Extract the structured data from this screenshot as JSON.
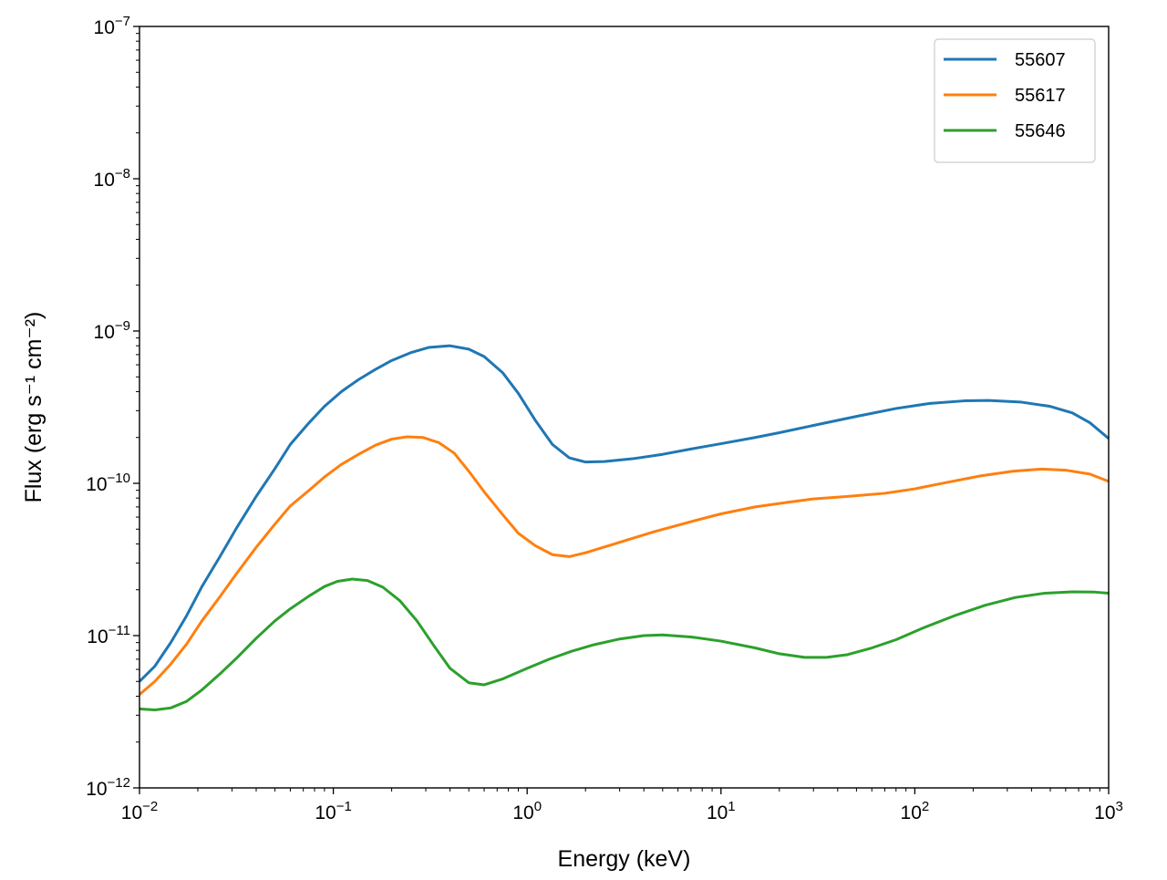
{
  "chart_data": {
    "type": "line",
    "title": "",
    "xlabel": "Energy (keV)",
    "ylabel": "Flux (erg s⁻¹ cm⁻²)",
    "xscale": "log",
    "yscale": "log",
    "xlim": [
      0.01,
      1000
    ],
    "ylim": [
      1e-12,
      1e-07
    ],
    "grid": false,
    "legend_position": "top-right",
    "x_ticks": [
      {
        "base": "10",
        "exp": "−2",
        "value": 0.01
      },
      {
        "base": "10",
        "exp": "−1",
        "value": 0.1
      },
      {
        "base": "10",
        "exp": "0",
        "value": 1
      },
      {
        "base": "10",
        "exp": "1",
        "value": 10
      },
      {
        "base": "10",
        "exp": "2",
        "value": 100
      },
      {
        "base": "10",
        "exp": "3",
        "value": 1000
      }
    ],
    "y_ticks": [
      {
        "base": "10",
        "exp": "−12",
        "value": 1e-12
      },
      {
        "base": "10",
        "exp": "−11",
        "value": 1e-11
      },
      {
        "base": "10",
        "exp": "−10",
        "value": 1e-10
      },
      {
        "base": "10",
        "exp": "−9",
        "value": 1e-09
      },
      {
        "base": "10",
        "exp": "−8",
        "value": 1e-08
      },
      {
        "base": "10",
        "exp": "−7",
        "value": 1e-07
      }
    ],
    "series": [
      {
        "name": "55607",
        "color": "#1f77b4",
        "points": [
          [
            0.01,
            5e-12
          ],
          [
            0.012,
            6.3e-12
          ],
          [
            0.0145,
            9e-12
          ],
          [
            0.0175,
            1.35e-11
          ],
          [
            0.021,
            2.1e-11
          ],
          [
            0.026,
            3.3e-11
          ],
          [
            0.032,
            5.2e-11
          ],
          [
            0.04,
            8.2e-11
          ],
          [
            0.05,
            1.25e-10
          ],
          [
            0.06,
            1.8e-10
          ],
          [
            0.075,
            2.5e-10
          ],
          [
            0.09,
            3.2e-10
          ],
          [
            0.11,
            4e-10
          ],
          [
            0.135,
            4.8e-10
          ],
          [
            0.165,
            5.6e-10
          ],
          [
            0.2,
            6.4e-10
          ],
          [
            0.25,
            7.2e-10
          ],
          [
            0.31,
            7.8e-10
          ],
          [
            0.4,
            8e-10
          ],
          [
            0.5,
            7.6e-10
          ],
          [
            0.6,
            6.8e-10
          ],
          [
            0.75,
            5.3e-10
          ],
          [
            0.9,
            3.9e-10
          ],
          [
            1.1,
            2.6e-10
          ],
          [
            1.35,
            1.8e-10
          ],
          [
            1.65,
            1.47e-10
          ],
          [
            2.0,
            1.38e-10
          ],
          [
            2.5,
            1.39e-10
          ],
          [
            3.5,
            1.45e-10
          ],
          [
            5.0,
            1.55e-10
          ],
          [
            7.0,
            1.68e-10
          ],
          [
            10,
            1.82e-10
          ],
          [
            15,
            2e-10
          ],
          [
            20,
            2.15e-10
          ],
          [
            30,
            2.4e-10
          ],
          [
            50,
            2.75e-10
          ],
          [
            80,
            3.1e-10
          ],
          [
            120,
            3.35e-10
          ],
          [
            180,
            3.48e-10
          ],
          [
            240,
            3.5e-10
          ],
          [
            350,
            3.42e-10
          ],
          [
            500,
            3.2e-10
          ],
          [
            650,
            2.9e-10
          ],
          [
            800,
            2.5e-10
          ],
          [
            1000,
            1.97e-10
          ]
        ]
      },
      {
        "name": "55617",
        "color": "#ff7f0e",
        "points": [
          [
            0.01,
            4.1e-12
          ],
          [
            0.012,
            5e-12
          ],
          [
            0.0145,
            6.5e-12
          ],
          [
            0.0175,
            8.8e-12
          ],
          [
            0.021,
            1.25e-11
          ],
          [
            0.026,
            1.8e-11
          ],
          [
            0.032,
            2.6e-11
          ],
          [
            0.04,
            3.8e-11
          ],
          [
            0.05,
            5.4e-11
          ],
          [
            0.06,
            7.1e-11
          ],
          [
            0.075,
            9e-11
          ],
          [
            0.09,
            1.1e-10
          ],
          [
            0.11,
            1.33e-10
          ],
          [
            0.135,
            1.55e-10
          ],
          [
            0.165,
            1.78e-10
          ],
          [
            0.2,
            1.95e-10
          ],
          [
            0.24,
            2.02e-10
          ],
          [
            0.29,
            2e-10
          ],
          [
            0.35,
            1.85e-10
          ],
          [
            0.42,
            1.58e-10
          ],
          [
            0.5,
            1.2e-10
          ],
          [
            0.6,
            8.8e-11
          ],
          [
            0.75,
            6.2e-11
          ],
          [
            0.9,
            4.7e-11
          ],
          [
            1.1,
            3.9e-11
          ],
          [
            1.35,
            3.4e-11
          ],
          [
            1.65,
            3.3e-11
          ],
          [
            2.0,
            3.5e-11
          ],
          [
            3.0,
            4.1e-11
          ],
          [
            4.5,
            4.8e-11
          ],
          [
            7.0,
            5.6e-11
          ],
          [
            10,
            6.3e-11
          ],
          [
            15,
            7e-11
          ],
          [
            22,
            7.5e-11
          ],
          [
            30,
            7.9e-11
          ],
          [
            45,
            8.2e-11
          ],
          [
            70,
            8.6e-11
          ],
          [
            100,
            9.2e-11
          ],
          [
            150,
            1.02e-10
          ],
          [
            220,
            1.12e-10
          ],
          [
            320,
            1.2e-10
          ],
          [
            450,
            1.24e-10
          ],
          [
            600,
            1.22e-10
          ],
          [
            800,
            1.15e-10
          ],
          [
            1000,
            1.03e-10
          ]
        ]
      },
      {
        "name": "55646",
        "color": "#2ca02c",
        "points": [
          [
            0.01,
            3.3e-12
          ],
          [
            0.012,
            3.25e-12
          ],
          [
            0.0145,
            3.35e-12
          ],
          [
            0.0175,
            3.7e-12
          ],
          [
            0.021,
            4.4e-12
          ],
          [
            0.026,
            5.6e-12
          ],
          [
            0.032,
            7.2e-12
          ],
          [
            0.04,
            9.6e-12
          ],
          [
            0.05,
            1.25e-11
          ],
          [
            0.06,
            1.5e-11
          ],
          [
            0.075,
            1.82e-11
          ],
          [
            0.09,
            2.1e-11
          ],
          [
            0.105,
            2.27e-11
          ],
          [
            0.125,
            2.35e-11
          ],
          [
            0.15,
            2.3e-11
          ],
          [
            0.18,
            2.08e-11
          ],
          [
            0.22,
            1.7e-11
          ],
          [
            0.27,
            1.25e-11
          ],
          [
            0.33,
            8.6e-12
          ],
          [
            0.4,
            6.1e-12
          ],
          [
            0.5,
            4.9e-12
          ],
          [
            0.6,
            4.75e-12
          ],
          [
            0.75,
            5.2e-12
          ],
          [
            1.0,
            6.1e-12
          ],
          [
            1.3,
            7e-12
          ],
          [
            1.7,
            7.9e-12
          ],
          [
            2.2,
            8.7e-12
          ],
          [
            3.0,
            9.5e-12
          ],
          [
            4.0,
            1e-11
          ],
          [
            5.0,
            1.01e-11
          ],
          [
            7.0,
            9.8e-12
          ],
          [
            10,
            9.2e-12
          ],
          [
            15,
            8.3e-12
          ],
          [
            20,
            7.6e-12
          ],
          [
            27,
            7.2e-12
          ],
          [
            35,
            7.2e-12
          ],
          [
            45,
            7.5e-12
          ],
          [
            60,
            8.3e-12
          ],
          [
            80,
            9.4e-12
          ],
          [
            110,
            1.12e-11
          ],
          [
            160,
            1.35e-11
          ],
          [
            230,
            1.58e-11
          ],
          [
            330,
            1.78e-11
          ],
          [
            470,
            1.9e-11
          ],
          [
            650,
            1.94e-11
          ],
          [
            850,
            1.93e-11
          ],
          [
            1000,
            1.9e-11
          ]
        ]
      }
    ]
  }
}
